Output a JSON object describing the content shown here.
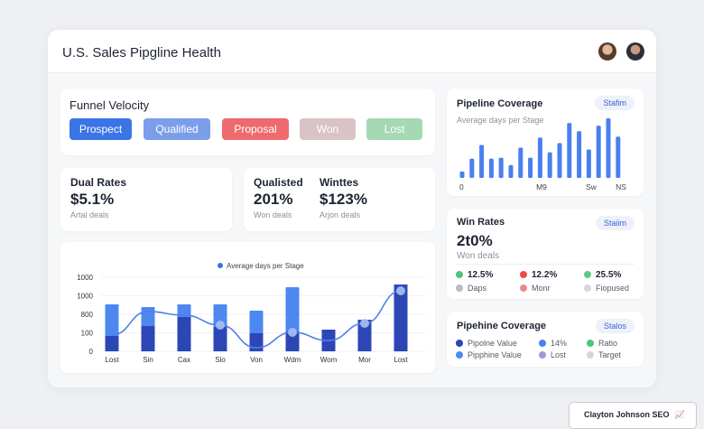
{
  "header": {
    "title": "U.S. Sales Pipgline Health"
  },
  "funnel": {
    "title": "Funnel Velocity",
    "stages": [
      {
        "label": "Prospect",
        "color": "#3b74e6"
      },
      {
        "label": "Qualified",
        "color": "#7c9ee9"
      },
      {
        "label": "Proposal",
        "color": "#ee6a6e"
      },
      {
        "label": "Won",
        "color": "#d9c3c6"
      },
      {
        "label": "Lost",
        "color": "#a4d9b3"
      }
    ]
  },
  "dual": {
    "title": "Dual Rates",
    "value": "$5.1%",
    "sub": "Artal deals"
  },
  "qualisted": {
    "title": "Qualisted",
    "value": "201%",
    "sub": "Won deals"
  },
  "wintes": {
    "title": "Winttes",
    "value": "$123%",
    "sub": "Arjon deals"
  },
  "pipeline_cov": {
    "title": "Pipeline Coverage",
    "subtitle": "Average days per Stage",
    "badge": "Stafim",
    "xlabels": [
      "0",
      "M9",
      "Sw",
      "NS"
    ]
  },
  "win_rates": {
    "title": "Win Rates",
    "badge": "Staiim",
    "value": "2t0%",
    "sub": "Won deals",
    "stats": [
      {
        "value": "12.5%",
        "color": "#4cc77a",
        "label": "Daps",
        "lcolor": "#b9bcc2"
      },
      {
        "value": "12.2%",
        "color": "#ef4a4a",
        "label": "Monr",
        "lcolor": "#ee8a8e"
      },
      {
        "value": "25.5%",
        "color": "#5ccb80",
        "label": "Fiopused",
        "lcolor": "#d6d8dc"
      }
    ]
  },
  "pipeline_cov2": {
    "title": "Pipehine Coverage",
    "badge": "Stalos",
    "legend": [
      {
        "label": "Pipolne Value",
        "color": "#2a45b8"
      },
      {
        "label": "14%",
        "color": "#4b82ec"
      },
      {
        "label": "Ratio",
        "color": "#4cc77a"
      },
      {
        "label": "Pipphine Value",
        "color": "#4b8cf0"
      },
      {
        "label": "Lost",
        "color": "#9a9cd0"
      },
      {
        "label": "Target",
        "color": "#d4d6da"
      }
    ]
  },
  "watermark": {
    "text": "Clayton Johnson SEO"
  },
  "chart_data": [
    {
      "type": "bar",
      "legend": "Average days per Stage",
      "legend_position": "top-center",
      "categories": [
        "Lost",
        "Sin",
        "Cax",
        "Slo",
        "Von",
        "Wdm",
        "Wom",
        "Mor",
        "Lost"
      ],
      "ytick_labels": [
        "0",
        "100",
        "800",
        "1000",
        "1000"
      ],
      "ylim": [
        0,
        1000
      ],
      "grid": true,
      "series": [
        {
          "values": [
            207,
            341,
            463,
            329,
            244,
            268,
            293,
            427,
            902
          ],
          "color": "#2c47b5"
        },
        {
          "values": [
            634,
            598,
            634,
            634,
            549,
            866,
            293,
            427,
            902
          ],
          "color": "#4d88f0"
        }
      ],
      "line": {
        "values": [
          220,
          537,
          488,
          354,
          49,
          256,
          146,
          378,
          817
        ],
        "color": "#4f7fe8",
        "markers": [
          false,
          false,
          false,
          true,
          false,
          true,
          false,
          true,
          true
        ]
      }
    },
    {
      "type": "bar",
      "title": "Pipeline Coverage",
      "values": [
        7,
        21,
        36,
        21,
        22,
        14,
        33,
        22,
        44,
        28,
        38,
        60,
        51,
        31,
        57,
        65,
        45
      ],
      "color": "#4a7ff0",
      "xtick_labels": [
        "0",
        "M9",
        "Sw",
        "NS"
      ]
    }
  ]
}
